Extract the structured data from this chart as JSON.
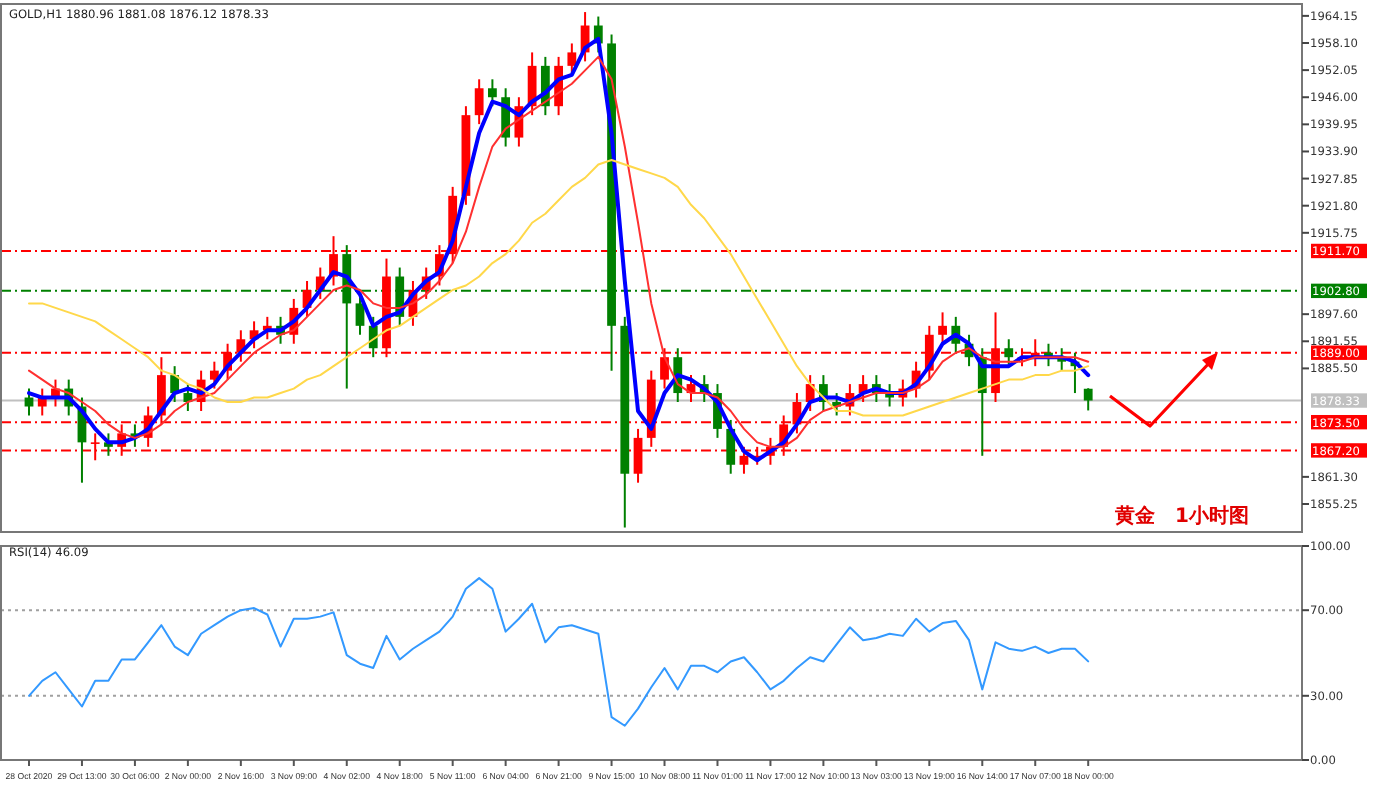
{
  "chart_data": [
    {
      "type": "candlestick",
      "title": "GOLD,H1 1880.96 1881.08 1876.12 1878.33",
      "tick_labels": "y",
      "categories": [
        null,
        null,
        null,
        null,
        null,
        null,
        null,
        null,
        null,
        null,
        null,
        null,
        null,
        null,
        null,
        null,
        null,
        null,
        null,
        null,
        null,
        null,
        null,
        null,
        null,
        null,
        null,
        null,
        null,
        null,
        null,
        null,
        null,
        null,
        null,
        null,
        null,
        null,
        null,
        null,
        null,
        null,
        null,
        null,
        null,
        null,
        null,
        null,
        null,
        null,
        null,
        null,
        null,
        null,
        null,
        null,
        null,
        null,
        null,
        null,
        null,
        null,
        null,
        null,
        null,
        null,
        null,
        null,
        null,
        null,
        null,
        null,
        null,
        null,
        null,
        null,
        null,
        null,
        null,
        null,
        null
      ],
      "ohlc": [
        [
          1879,
          1881,
          1875,
          1877
        ],
        [
          1877,
          1881,
          1875,
          1879
        ],
        [
          1879,
          1883,
          1877,
          1881
        ],
        [
          1881,
          1883,
          1875,
          1877
        ],
        [
          1877,
          1879,
          1860,
          1869
        ],
        [
          1869,
          1871,
          1865,
          1869
        ],
        [
          1869,
          1871,
          1866,
          1868
        ],
        [
          1868,
          1873,
          1866,
          1871
        ],
        [
          1871,
          1873,
          1868,
          1870
        ],
        [
          1870,
          1877,
          1868,
          1875
        ],
        [
          1875,
          1888,
          1873,
          1884
        ],
        [
          1884,
          1886,
          1878,
          1880
        ],
        [
          1880,
          1882,
          1876,
          1878
        ],
        [
          1878,
          1885,
          1876,
          1883
        ],
        [
          1883,
          1887,
          1881,
          1885
        ],
        [
          1885,
          1891,
          1883,
          1889
        ],
        [
          1889,
          1894,
          1887,
          1892
        ],
        [
          1892,
          1896,
          1890,
          1894
        ],
        [
          1894,
          1897,
          1892,
          1895
        ],
        [
          1895,
          1897,
          1891,
          1893
        ],
        [
          1893,
          1901,
          1891,
          1899
        ],
        [
          1899,
          1905,
          1897,
          1903
        ],
        [
          1903,
          1908,
          1901,
          1906
        ],
        [
          1906,
          1915,
          1904,
          1911
        ],
        [
          1911,
          1913,
          1881,
          1900
        ],
        [
          1900,
          1902,
          1893,
          1895
        ],
        [
          1895,
          1897,
          1888,
          1890
        ],
        [
          1890,
          1910,
          1888,
          1906
        ],
        [
          1906,
          1908,
          1895,
          1897
        ],
        [
          1897,
          1905,
          1895,
          1903
        ],
        [
          1903,
          1908,
          1901,
          1906
        ],
        [
          1906,
          1913,
          1904,
          1911
        ],
        [
          1911,
          1926,
          1909,
          1924
        ],
        [
          1924,
          1944,
          1922,
          1942
        ],
        [
          1942,
          1950,
          1940,
          1948
        ],
        [
          1948,
          1950,
          1944,
          1946
        ],
        [
          1946,
          1948,
          1935,
          1937
        ],
        [
          1937,
          1946,
          1935,
          1944
        ],
        [
          1944,
          1956,
          1942,
          1953
        ],
        [
          1953,
          1955,
          1942,
          1944
        ],
        [
          1944,
          1955,
          1942,
          1953
        ],
        [
          1953,
          1958,
          1951,
          1956
        ],
        [
          1956,
          1965,
          1954,
          1962
        ],
        [
          1962,
          1964,
          1956,
          1958
        ],
        [
          1958,
          1960,
          1885,
          1895
        ],
        [
          1895,
          1897,
          1850,
          1862
        ],
        [
          1862,
          1872,
          1860,
          1870
        ],
        [
          1870,
          1885,
          1868,
          1883
        ],
        [
          1883,
          1890,
          1881,
          1888
        ],
        [
          1888,
          1890,
          1878,
          1880
        ],
        [
          1880,
          1884,
          1878,
          1882
        ],
        [
          1882,
          1884,
          1878,
          1880
        ],
        [
          1880,
          1882,
          1870,
          1872
        ],
        [
          1872,
          1874,
          1862,
          1864
        ],
        [
          1864,
          1868,
          1862,
          1866
        ],
        [
          1866,
          1868,
          1864,
          1866
        ],
        [
          1866,
          1870,
          1864,
          1868
        ],
        [
          1868,
          1875,
          1866,
          1873
        ],
        [
          1873,
          1880,
          1871,
          1878
        ],
        [
          1878,
          1884,
          1876,
          1882
        ],
        [
          1882,
          1884,
          1876,
          1878
        ],
        [
          1878,
          1880,
          1875,
          1877
        ],
        [
          1877,
          1882,
          1875,
          1880
        ],
        [
          1880,
          1884,
          1878,
          1882
        ],
        [
          1882,
          1884,
          1878,
          1880
        ],
        [
          1880,
          1882,
          1877,
          1879
        ],
        [
          1879,
          1883,
          1877,
          1881
        ],
        [
          1881,
          1887,
          1879,
          1885
        ],
        [
          1885,
          1895,
          1883,
          1893
        ],
        [
          1893,
          1898,
          1891,
          1895
        ],
        [
          1895,
          1897,
          1889,
          1891
        ],
        [
          1891,
          1893,
          1886,
          1888
        ],
        [
          1888,
          1890,
          1866,
          1880
        ],
        [
          1880,
          1898,
          1878,
          1890
        ],
        [
          1890,
          1892,
          1886,
          1888
        ],
        [
          1888,
          1890,
          1886,
          1888
        ],
        [
          1888,
          1892,
          1886,
          1889
        ],
        [
          1889,
          1891,
          1886,
          1888
        ],
        [
          1888,
          1890,
          1885,
          1887
        ],
        [
          1887,
          1889,
          1880,
          1886
        ],
        [
          1880.96,
          1881.08,
          1876.12,
          1878.33
        ]
      ],
      "colors": [
        "#008000",
        "#ff0000",
        "#ff0000",
        "#008000",
        "#008000",
        "#ff0000",
        "#008000",
        "#ff0000",
        "#008000",
        "#ff0000",
        "#ff0000",
        "#008000",
        "#008000",
        "#ff0000",
        "#ff0000",
        "#ff0000",
        "#ff0000",
        "#ff0000",
        "#ff0000",
        "#008000",
        "#ff0000",
        "#ff0000",
        "#ff0000",
        "#ff0000",
        "#008000",
        "#008000",
        "#008000",
        "#ff0000",
        "#008000",
        "#ff0000",
        "#ff0000",
        "#ff0000",
        "#ff0000",
        "#ff0000",
        "#ff0000",
        "#008000",
        "#008000",
        "#ff0000",
        "#ff0000",
        "#008000",
        "#ff0000",
        "#ff0000",
        "#ff0000",
        "#008000",
        "#008000",
        "#008000",
        "#ff0000",
        "#ff0000",
        "#ff0000",
        "#008000",
        "#ff0000",
        "#008000",
        "#008000",
        "#008000",
        "#ff0000",
        "#ff0000",
        "#ff0000",
        "#ff0000",
        "#ff0000",
        "#ff0000",
        "#008000",
        "#008000",
        "#ff0000",
        "#ff0000",
        "#008000",
        "#008000",
        "#ff0000",
        "#ff0000",
        "#ff0000",
        "#ff0000",
        "#008000",
        "#008000",
        "#008000",
        "#ff0000",
        "#008000",
        "#ff0000",
        "#ff0000",
        "#008000",
        "#008000",
        "#008000",
        "#008000"
      ],
      "series": [
        {
          "type": "line",
          "color": "#0000ff",
          "values": [
            1880,
            1879,
            1879,
            1879,
            1876,
            1872,
            1869,
            1869,
            1870,
            1872,
            1876,
            1880,
            1881,
            1880,
            1882,
            1886,
            1889,
            1892,
            1894,
            1894,
            1896,
            1899,
            1903,
            1907,
            1906,
            1902,
            1895,
            1897,
            1898,
            1902,
            1905,
            1907,
            1914,
            1926,
            1938,
            1945,
            1944,
            1942,
            1945,
            1947,
            1950,
            1951,
            1957,
            1959,
            1938,
            1905,
            1876,
            1872,
            1880,
            1884,
            1883,
            1881,
            1878,
            1872,
            1867,
            1865,
            1867,
            1869,
            1873,
            1878,
            1879,
            1879,
            1878,
            1880,
            1881,
            1880,
            1880,
            1882,
            1886,
            1891,
            1893,
            1891,
            1886,
            1886,
            1886,
            1888,
            1888,
            1888,
            1888,
            1887,
            1884
          ]
        },
        {
          "type": "line",
          "color": "#ff3030",
          "values": [
            1885,
            1883,
            1881,
            1880,
            1878,
            1876,
            1873,
            1871,
            1870,
            1871,
            1873,
            1876,
            1878,
            1879,
            1880,
            1883,
            1886,
            1889,
            1891,
            1893,
            1894,
            1897,
            1900,
            1903,
            1904,
            1903,
            1900,
            1899,
            1899,
            1900,
            1902,
            1905,
            1909,
            1916,
            1926,
            1935,
            1939,
            1941,
            1943,
            1945,
            1947,
            1949,
            1952,
            1955,
            1950,
            1935,
            1918,
            1900,
            1888,
            1882,
            1880,
            1880,
            1879,
            1876,
            1872,
            1869,
            1868,
            1868,
            1870,
            1874,
            1876,
            1877,
            1878,
            1879,
            1880,
            1880,
            1880,
            1881,
            1883,
            1887,
            1889,
            1890,
            1888,
            1887,
            1887,
            1887,
            1888,
            1888,
            1888,
            1888,
            1887
          ]
        },
        {
          "type": "line",
          "color": "#ffd84a",
          "values": [
            1900,
            1900,
            1899,
            1898,
            1897,
            1896,
            1894,
            1892,
            1890,
            1888,
            1885,
            1884,
            1882,
            1881,
            1879,
            1878,
            1878,
            1879,
            1879,
            1880,
            1881,
            1883,
            1884,
            1886,
            1888,
            1890,
            1892,
            1894,
            1895,
            1897,
            1899,
            1901,
            1903,
            1904,
            1906,
            1909,
            1911,
            1914,
            1918,
            1920,
            1923,
            1926,
            1928,
            1931,
            1932,
            1931,
            1930,
            1929,
            1928,
            1926,
            1922,
            1919,
            1915,
            1911,
            1906,
            1901,
            1896,
            1891,
            1886,
            1882,
            1879,
            1876,
            1876,
            1875,
            1875,
            1875,
            1875,
            1876,
            1877,
            1878,
            1879,
            1880,
            1881,
            1882,
            1883,
            1883,
            1884,
            1884,
            1885,
            1885,
            1886
          ]
        }
      ],
      "ylim": [
        1849,
        1966.8
      ],
      "yticks": [
        {
          "value": 1855.25,
          "label": "1855.25"
        },
        {
          "value": 1861.3,
          "label": "1861.30"
        },
        {
          "value": 1885.5,
          "label": "1885.50"
        },
        {
          "value": 1891.55,
          "label": "1891.55"
        },
        {
          "value": 1897.6,
          "label": "1897.60"
        },
        {
          "value": 1915.75,
          "label": "1915.75"
        },
        {
          "value": 1921.8,
          "label": "1921.80"
        },
        {
          "value": 1927.85,
          "label": "1927.85"
        },
        {
          "value": 1933.9,
          "label": "1933.90"
        },
        {
          "value": 1939.95,
          "label": "1939.95"
        },
        {
          "value": 1946,
          "label": "1946.00"
        },
        {
          "value": 1952.05,
          "label": "1952.05"
        },
        {
          "value": 1958.1,
          "label": "1958.10"
        },
        {
          "value": 1964.15,
          "label": "1964.15"
        }
      ],
      "ref_lines": [
        {
          "axis": "y",
          "value": 1911.7,
          "label": "1911.70",
          "color": "#ff0000",
          "line_style": "dashed"
        },
        {
          "axis": "y",
          "value": 1902.8,
          "label": "1902.80",
          "color": "#008000",
          "line_style": "dashed"
        },
        {
          "axis": "y",
          "value": 1889,
          "label": "1889.00",
          "color": "#ff0000",
          "line_style": "dashed"
        },
        {
          "axis": "y",
          "value": 1878.33,
          "label": "1878.33",
          "color": "#c0c0c0",
          "line_style": "solid"
        },
        {
          "axis": "y",
          "value": 1873.5,
          "label": "1873.50",
          "color": "#ff0000",
          "line_style": "dashed"
        },
        {
          "axis": "y",
          "value": 1867.2,
          "label": "1867.20",
          "color": "#ff0000",
          "line_style": "dashed"
        }
      ],
      "annotations": [
        "黄金　1小时图"
      ]
    },
    {
      "type": "line",
      "title": "RSI(14) 46.09",
      "categories": [
        "28 Oct 2020",
        null,
        null,
        null,
        "29 Oct 13:00",
        null,
        null,
        null,
        "30 Oct 06:00",
        null,
        null,
        null,
        "2 Nov 00:00",
        null,
        null,
        null,
        "2 Nov 16:00",
        null,
        null,
        null,
        "3 Nov 09:00",
        null,
        null,
        null,
        "4 Nov 02:00",
        null,
        null,
        null,
        "4 Nov 18:00",
        null,
        null,
        null,
        "5 Nov 11:00",
        null,
        null,
        null,
        "6 Nov 04:00",
        null,
        null,
        null,
        "6 Nov 21:00",
        null,
        null,
        null,
        "9 Nov 15:00",
        null,
        null,
        null,
        "10 Nov 08:00",
        null,
        null,
        null,
        "11 Nov 01:00",
        null,
        null,
        null,
        "11 Nov 17:00",
        null,
        null,
        null,
        "12 Nov 10:00",
        null,
        null,
        null,
        "13 Nov 03:00",
        null,
        null,
        null,
        "13 Nov 19:00",
        null,
        null,
        null,
        "16 Nov 14:00",
        null,
        null,
        null,
        "17 Nov 07:00",
        null,
        null,
        null,
        "18 Nov 00:00"
      ],
      "series": [
        {
          "color": "#3399ff",
          "values": [
            30,
            37,
            41,
            33,
            25,
            37,
            37,
            47,
            47,
            55,
            63,
            53,
            49,
            59,
            63,
            67,
            70,
            71,
            68,
            53,
            66,
            66,
            67,
            69,
            49,
            45,
            43,
            58,
            47,
            52,
            56,
            60,
            67,
            80,
            85,
            80,
            60,
            66,
            73,
            55,
            62,
            63,
            61,
            59,
            20,
            16,
            24,
            34,
            43,
            33,
            44,
            44,
            41,
            46,
            48,
            41,
            33,
            37,
            43,
            48,
            46,
            54,
            62,
            56,
            57,
            59,
            58,
            66,
            60,
            64,
            65,
            56,
            33,
            55,
            52,
            51,
            53,
            50,
            52,
            52,
            46.09
          ]
        }
      ],
      "ylim": [
        0,
        100
      ],
      "yticks": [
        {
          "value": 0,
          "label": "0.00"
        },
        {
          "value": 30,
          "label": "30.00"
        },
        {
          "value": 70,
          "label": "70.00"
        },
        {
          "value": 100,
          "label": "100.00"
        }
      ],
      "ref_lines": [
        {
          "axis": "y",
          "value": 70,
          "color": "#a0a0a0",
          "line_style": "dotted"
        },
        {
          "axis": "y",
          "value": 30,
          "color": "#a0a0a0",
          "line_style": "dotted"
        }
      ]
    }
  ]
}
